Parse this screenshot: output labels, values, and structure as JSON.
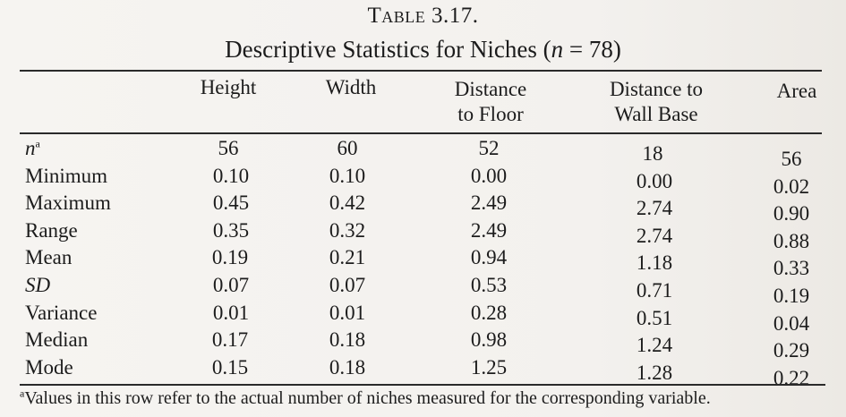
{
  "table": {
    "title": "Table 3.17.",
    "subtitle_prefix": "Descriptive Statistics for Niches (",
    "subtitle_n": "n",
    "subtitle_suffix": " = 78)",
    "columns": [
      {
        "line1": "Height",
        "line2": ""
      },
      {
        "line1": "Width",
        "line2": ""
      },
      {
        "line1": "Distance",
        "line2": "to Floor"
      },
      {
        "line1": "Distance to",
        "line2": "Wall Base"
      },
      {
        "line1": "Area",
        "line2": ""
      }
    ],
    "rows": [
      {
        "label": "n",
        "sup": "a",
        "italic": true,
        "values": [
          "56",
          "60",
          "52",
          "18",
          "56"
        ]
      },
      {
        "label": "Minimum",
        "values": [
          "0.10",
          "0.10",
          "0.00",
          "0.00",
          "0.02"
        ]
      },
      {
        "label": "Maximum",
        "values": [
          "0.45",
          "0.42",
          "2.49",
          "2.74",
          "0.90"
        ]
      },
      {
        "label": "Range",
        "values": [
          "0.35",
          "0.32",
          "2.49",
          "2.74",
          "0.88"
        ]
      },
      {
        "label": "Mean",
        "values": [
          "0.19",
          "0.21",
          "0.94",
          "1.18",
          "0.33"
        ]
      },
      {
        "label": "SD",
        "italic": true,
        "values": [
          "0.07",
          "0.07",
          "0.53",
          "0.71",
          "0.19"
        ]
      },
      {
        "label": "Variance",
        "values": [
          "0.01",
          "0.01",
          "0.28",
          "0.51",
          "0.04"
        ]
      },
      {
        "label": "Median",
        "values": [
          "0.17",
          "0.18",
          "0.98",
          "1.24",
          "0.29"
        ]
      },
      {
        "label": "Mode",
        "values": [
          "0.15",
          "0.18",
          "1.25",
          "1.28",
          "0.22"
        ]
      }
    ],
    "footnote_sup": "a",
    "footnote": "Values in this row refer to the actual number of niches measured for the corresponding variable."
  }
}
